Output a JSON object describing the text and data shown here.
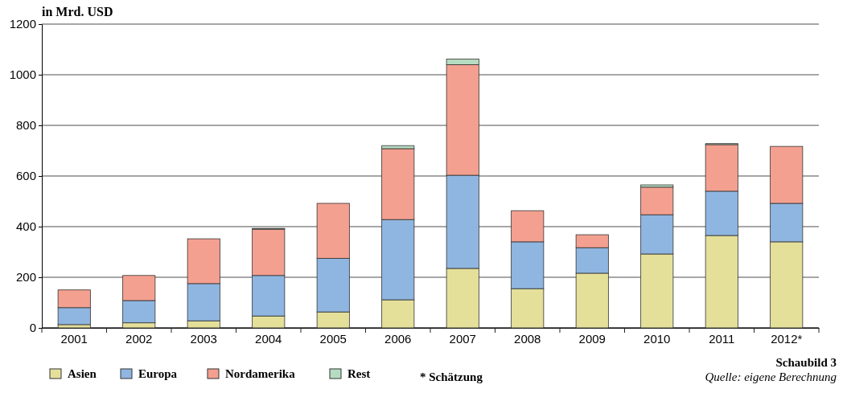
{
  "chart_data": {
    "type": "bar",
    "stacked": true,
    "ylabel": "in Mrd. USD",
    "categories": [
      "2001",
      "2002",
      "2003",
      "2004",
      "2005",
      "2006",
      "2007",
      "2008",
      "2009",
      "2010",
      "2011",
      "2012*"
    ],
    "series": [
      {
        "name": "Asien",
        "color": "#e4e09a",
        "values": [
          13,
          20,
          28,
          47,
          63,
          111,
          235,
          155,
          216,
          292,
          365,
          340
        ]
      },
      {
        "name": "Europa",
        "color": "#8fb6e0",
        "values": [
          67,
          88,
          147,
          160,
          212,
          317,
          368,
          185,
          101,
          155,
          175,
          152
        ]
      },
      {
        "name": "Nordamerika",
        "color": "#f4a090",
        "values": [
          70,
          99,
          177,
          183,
          217,
          280,
          437,
          123,
          51,
          109,
          184,
          225
        ]
      },
      {
        "name": "Rest",
        "color": "#b5dcc0",
        "values": [
          null,
          null,
          null,
          3,
          null,
          12,
          22,
          null,
          null,
          9,
          4,
          null
        ]
      }
    ],
    "ylim": [
      0,
      1200
    ],
    "yticks": [
      0,
      200,
      400,
      600,
      800,
      1000,
      1200
    ],
    "grid": "y",
    "legend": "bottom",
    "annotations": [
      "Schaubild 3",
      "Quelle: eigene Berechnung",
      "* Schätzung"
    ]
  }
}
